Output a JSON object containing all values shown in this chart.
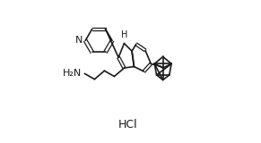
{
  "title": "",
  "hcl_text": "HCl",
  "nh_text": "H",
  "n_text": "N",
  "nh2_text": "H₂N",
  "bg_color": "#ffffff",
  "line_color": "#1a1a1a",
  "line_width": 1.2,
  "font_size": 8
}
